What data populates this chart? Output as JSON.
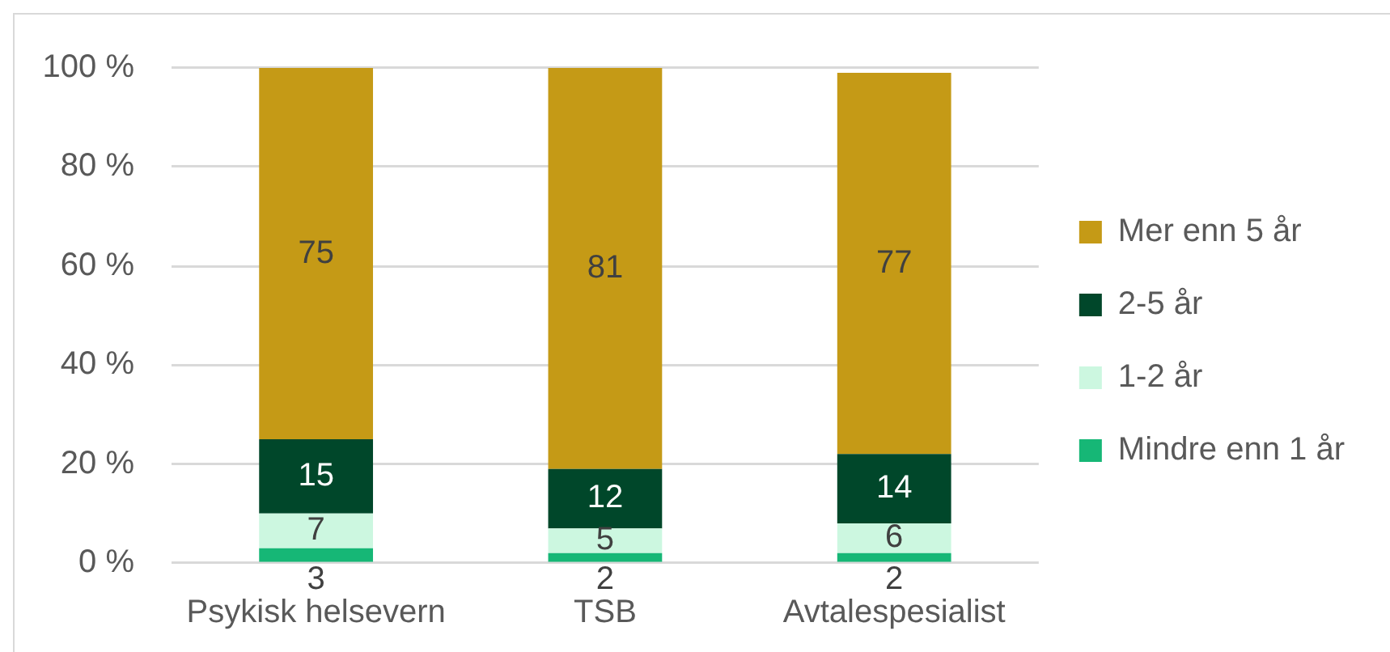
{
  "chart_data": {
    "type": "bar",
    "stacked": true,
    "categories": [
      "Psykisk helsevern",
      "TSB",
      "Avtalespesialist"
    ],
    "series": [
      {
        "name": "Mindre enn 1 år",
        "color": "#16b776",
        "values": [
          3,
          2,
          2
        ]
      },
      {
        "name": "1-2 år",
        "color": "#ccf7e0",
        "values": [
          7,
          5,
          6
        ]
      },
      {
        "name": "2-5 år",
        "color": "#00472a",
        "values": [
          15,
          12,
          14
        ]
      },
      {
        "name": "Mer enn 5 år",
        "color": "#c59a16",
        "values": [
          75,
          81,
          77
        ]
      }
    ],
    "ylim": [
      0,
      100
    ],
    "yticks": [
      {
        "value": 0,
        "label": "0 %"
      },
      {
        "value": 20,
        "label": "20 %"
      },
      {
        "value": 40,
        "label": "40 %"
      },
      {
        "value": 60,
        "label": "60 %"
      },
      {
        "value": 80,
        "label": "80 %"
      },
      {
        "value": 100,
        "label": "100 %"
      }
    ],
    "grid": "y",
    "legend": "right",
    "data_labels": true
  }
}
